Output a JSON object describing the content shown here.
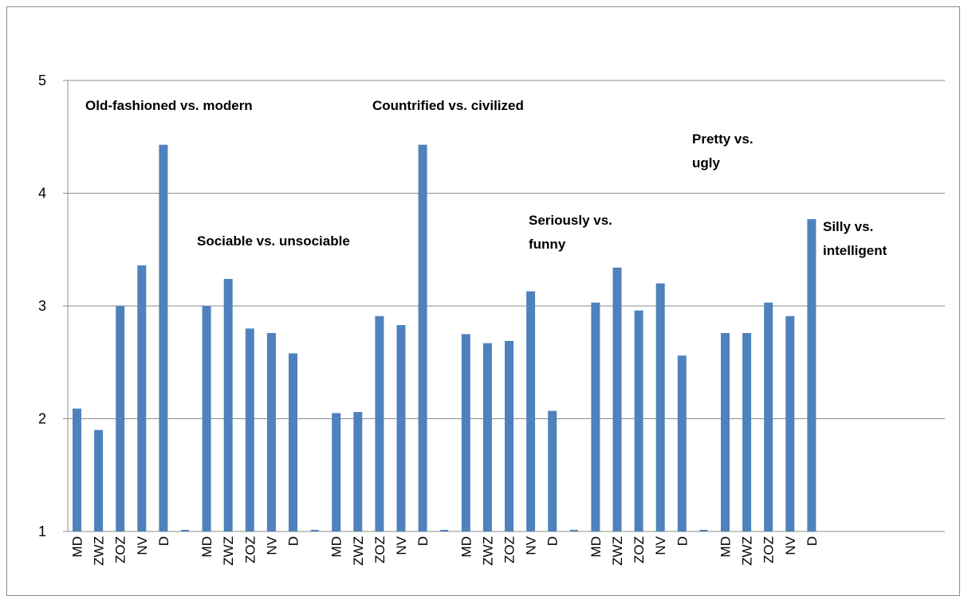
{
  "chart_data": {
    "type": "bar",
    "ylim": [
      1,
      5
    ],
    "yticks": [
      "1",
      "2",
      "3",
      "4",
      "5"
    ],
    "grid": true,
    "bar_color": "#4f81bd",
    "groups": [
      {
        "label_lines": [
          "Old-fashioned vs. modern"
        ],
        "categories": [
          "MD",
          "ZWZ",
          "ZOZ",
          "NV",
          "D"
        ],
        "values": [
          2.09,
          1.9,
          3.0,
          3.36,
          4.43
        ]
      },
      {
        "label_lines": [
          "Sociable vs. unsociable"
        ],
        "categories": [
          "MD",
          "ZWZ",
          "ZOZ",
          "NV",
          "D"
        ],
        "values": [
          3.0,
          3.24,
          2.8,
          2.76,
          2.58
        ]
      },
      {
        "label_lines": [
          "Countrified vs. civilized"
        ],
        "categories": [
          "MD",
          "ZWZ",
          "ZOZ",
          "NV",
          "D"
        ],
        "values": [
          2.05,
          2.06,
          2.91,
          2.83,
          4.43
        ]
      },
      {
        "label_lines": [
          "Seriously vs.",
          "funny"
        ],
        "categories": [
          "MD",
          "ZWZ",
          "ZOZ",
          "NV",
          "D"
        ],
        "values": [
          2.75,
          2.67,
          2.69,
          3.13,
          2.07
        ]
      },
      {
        "label_lines": [
          "Pretty vs.",
          "ugly"
        ],
        "categories": [
          "MD",
          "ZWZ",
          "ZOZ",
          "NV",
          "D"
        ],
        "values": [
          3.03,
          3.34,
          2.96,
          3.2,
          2.56
        ]
      },
      {
        "label_lines": [
          "Silly vs.",
          "intelligent"
        ],
        "categories": [
          "MD",
          "ZWZ",
          "ZOZ",
          "NV",
          "D"
        ],
        "values": [
          2.76,
          2.76,
          3.03,
          2.91,
          3.77
        ]
      }
    ]
  }
}
